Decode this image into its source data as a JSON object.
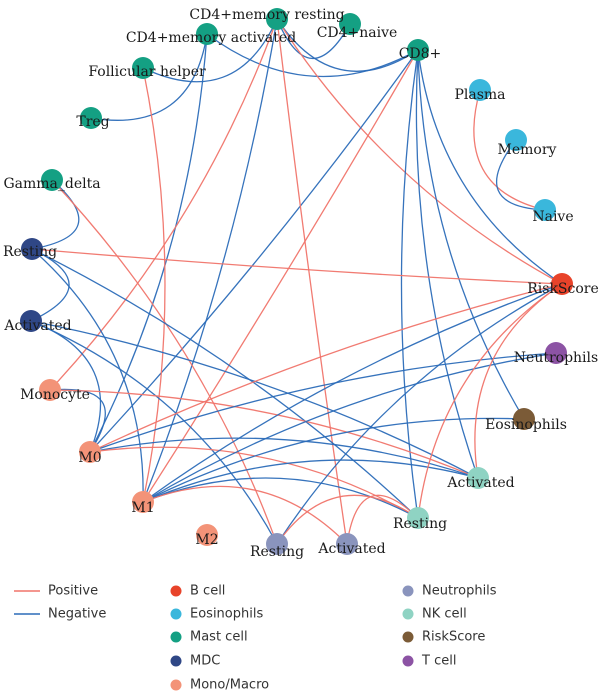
{
  "colors": {
    "positive": "#f0746a",
    "negative": "#2b6cb8",
    "b_cell": "#e8432a",
    "eosinophils": "#3ab7dc",
    "mast_cell": "#14a083",
    "mdc": "#2f4786",
    "mono_macro": "#f39378",
    "neutrophils": "#8a94bd",
    "nk_cell": "#8fd3c3",
    "riskscore": "#7b5b37",
    "t_cell": "#8c53a4"
  },
  "nodes": [
    {
      "id": "cd4_memory_resting",
      "label": "CD4+memory resting",
      "group": "mast_cell"
    },
    {
      "id": "cd4_naive",
      "label": "CD4+naive",
      "group": "mast_cell"
    },
    {
      "id": "cd4_memory_activated",
      "label": "CD4+memory activated",
      "group": "mast_cell"
    },
    {
      "id": "cd8",
      "label": "CD8+",
      "group": "mast_cell"
    },
    {
      "id": "follicular_helper",
      "label": "Follicular helper",
      "group": "mast_cell"
    },
    {
      "id": "treg",
      "label": "Treg",
      "group": "mast_cell"
    },
    {
      "id": "gamma_delta",
      "label": "Gamma_delta",
      "group": "mast_cell"
    },
    {
      "id": "plasma",
      "label": "Plasma",
      "group": "eosinophils"
    },
    {
      "id": "memory",
      "label": "Memory",
      "group": "eosinophils"
    },
    {
      "id": "naive",
      "label": "Naive",
      "group": "eosinophils"
    },
    {
      "id": "mdc_resting",
      "label": "Resting",
      "group": "mdc"
    },
    {
      "id": "mdc_activated",
      "label": "Activated",
      "group": "mdc"
    },
    {
      "id": "monocyte",
      "label": "Monocyte",
      "group": "mono_macro"
    },
    {
      "id": "m0",
      "label": "M0",
      "group": "mono_macro"
    },
    {
      "id": "m1",
      "label": "M1",
      "group": "mono_macro"
    },
    {
      "id": "m2",
      "label": "M2",
      "group": "mono_macro"
    },
    {
      "id": "riskscore",
      "label": "RiskScore",
      "group": "b_cell"
    },
    {
      "id": "neutrophils",
      "label": "Neutrophils",
      "group": "t_cell"
    },
    {
      "id": "eosinophils",
      "label": "Eosinophils",
      "group": "riskscore"
    },
    {
      "id": "nk_activated",
      "label": "Activated",
      "group": "nk_cell"
    },
    {
      "id": "nk_resting",
      "label": "Resting",
      "group": "nk_cell"
    },
    {
      "id": "neu_resting",
      "label": "Resting",
      "group": "neutrophils"
    },
    {
      "id": "neu_activated",
      "label": "Activated",
      "group": "neutrophils"
    }
  ],
  "edges": [
    {
      "source": "plasma",
      "target": "naive",
      "type": "positive"
    },
    {
      "source": "memory",
      "target": "naive",
      "type": "negative"
    },
    {
      "source": "cd4_memory_resting",
      "target": "cd4_naive",
      "type": "negative"
    },
    {
      "source": "cd4_memory_resting",
      "target": "cd8",
      "type": "negative"
    },
    {
      "source": "cd4_memory_activated",
      "target": "cd8",
      "type": "negative"
    },
    {
      "source": "cd4_memory_resting",
      "target": "follicular_helper",
      "type": "negative"
    },
    {
      "source": "cd4_memory_activated",
      "target": "treg",
      "type": "negative"
    },
    {
      "source": "cd4_memory_resting",
      "target": "riskscore",
      "type": "positive"
    },
    {
      "source": "cd8",
      "target": "riskscore",
      "type": "negative"
    },
    {
      "source": "cd8",
      "target": "nk_activated",
      "type": "negative"
    },
    {
      "source": "cd8",
      "target": "eosinophils",
      "type": "negative"
    },
    {
      "source": "cd8",
      "target": "nk_resting",
      "type": "negative"
    },
    {
      "source": "cd8",
      "target": "m0",
      "type": "negative"
    },
    {
      "source": "cd8",
      "target": "m1",
      "type": "positive"
    },
    {
      "source": "cd4_memory_activated",
      "target": "m0",
      "type": "negative"
    },
    {
      "source": "cd4_memory_resting",
      "target": "neu_activated",
      "type": "positive"
    },
    {
      "source": "cd4_memory_resting",
      "target": "m1",
      "type": "negative"
    },
    {
      "source": "cd4_memory_resting",
      "target": "monocyte",
      "type": "positive"
    },
    {
      "source": "follicular_helper",
      "target": "m1",
      "type": "positive"
    },
    {
      "source": "gamma_delta",
      "target": "mdc_resting",
      "type": "negative"
    },
    {
      "source": "gamma_delta",
      "target": "neu_resting",
      "type": "positive"
    },
    {
      "source": "mdc_resting",
      "target": "mdc_activated",
      "type": "negative"
    },
    {
      "source": "mdc_resting",
      "target": "riskscore",
      "type": "positive"
    },
    {
      "source": "mdc_resting",
      "target": "nk_resting",
      "type": "negative"
    },
    {
      "source": "mdc_resting",
      "target": "m1",
      "type": "negative"
    },
    {
      "source": "mdc_activated",
      "target": "nk_activated",
      "type": "negative"
    },
    {
      "source": "mdc_activated",
      "target": "neu_resting",
      "type": "negative"
    },
    {
      "source": "mdc_activated",
      "target": "m0",
      "type": "negative"
    },
    {
      "source": "monocyte",
      "target": "m0",
      "type": "negative"
    },
    {
      "source": "monocyte",
      "target": "nk_activated",
      "type": "positive"
    },
    {
      "source": "m0",
      "target": "riskscore",
      "type": "positive"
    },
    {
      "source": "m0",
      "target": "neutrophils",
      "type": "negative"
    },
    {
      "source": "m0",
      "target": "nk_activated",
      "type": "negative"
    },
    {
      "source": "m0",
      "target": "nk_resting",
      "type": "positive"
    },
    {
      "source": "m1",
      "target": "riskscore",
      "type": "negative"
    },
    {
      "source": "m1",
      "target": "neutrophils",
      "type": "negative"
    },
    {
      "source": "m1",
      "target": "nk_activated",
      "type": "negative"
    },
    {
      "source": "m1",
      "target": "nk_resting",
      "type": "negative"
    },
    {
      "source": "m1",
      "target": "eosinophils",
      "type": "negative"
    },
    {
      "source": "m1",
      "target": "neu_activated",
      "type": "positive"
    },
    {
      "source": "riskscore",
      "target": "nk_activated",
      "type": "positive"
    },
    {
      "source": "riskscore",
      "target": "neu_resting",
      "type": "negative"
    },
    {
      "source": "riskscore",
      "target": "nk_resting",
      "type": "positive"
    },
    {
      "source": "neu_resting",
      "target": "nk_resting",
      "type": "positive"
    },
    {
      "source": "neu_activated",
      "target": "nk_resting",
      "type": "positive"
    }
  ],
  "legend": {
    "edge_types": [
      {
        "label": "Positive",
        "type": "positive"
      },
      {
        "label": "Negative",
        "type": "negative"
      }
    ],
    "groups": [
      {
        "label": "B cell",
        "group": "b_cell"
      },
      {
        "label": "Eosinophils",
        "group": "eosinophils"
      },
      {
        "label": "Mast cell",
        "group": "mast_cell"
      },
      {
        "label": "MDC",
        "group": "mdc"
      },
      {
        "label": "Mono/Macro",
        "group": "mono_macro"
      },
      {
        "label": "Neutrophils",
        "group": "neutrophils"
      },
      {
        "label": "NK cell",
        "group": "nk_cell"
      },
      {
        "label": "RiskScore",
        "group": "riskscore"
      },
      {
        "label": "T cell",
        "group": "t_cell"
      }
    ]
  }
}
